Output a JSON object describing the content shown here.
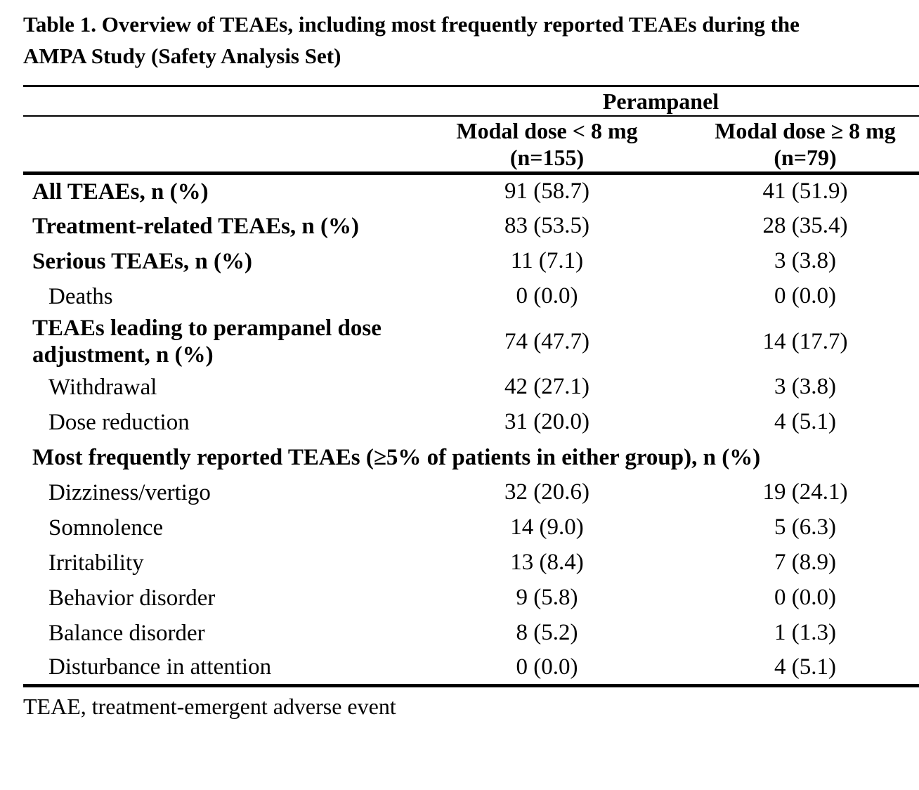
{
  "page": {
    "title_line1": "Table 1. Overview of TEAEs, including most frequently reported TEAEs during the",
    "title_line2": "AMPA Study (Safety Analysis Set)",
    "footnote": "TEAE, treatment-emergent adverse event"
  },
  "table": {
    "group_header": "Perampanel",
    "columns": [
      {
        "label_line1": "Modal dose < 8 mg",
        "label_line2": "(n=155)"
      },
      {
        "label_line1": "Modal dose ≥ 8 mg",
        "label_line2": "(n=79)"
      }
    ],
    "rows": [
      {
        "label": "All TEAEs, n (%)",
        "values": [
          "91 (58.7)",
          "41 (51.9)"
        ],
        "bold": true,
        "indent": false,
        "section": false,
        "tall": false
      },
      {
        "label": "Treatment-related TEAEs, n (%)",
        "values": [
          "83 (53.5)",
          "28 (35.4)"
        ],
        "bold": true,
        "indent": false,
        "section": false,
        "tall": false
      },
      {
        "label": "Serious TEAEs, n (%)",
        "values": [
          "11 (7.1)",
          "3 (3.8)"
        ],
        "bold": true,
        "indent": false,
        "section": false,
        "tall": false
      },
      {
        "label": "Deaths",
        "values": [
          "0 (0.0)",
          "0 (0.0)"
        ],
        "bold": false,
        "indent": true,
        "section": false,
        "tall": false
      },
      {
        "label": "TEAEs leading to perampanel dose adjustment, n (%)",
        "values": [
          "74 (47.7)",
          "14 (17.7)"
        ],
        "bold": true,
        "indent": false,
        "section": false,
        "tall": true
      },
      {
        "label": "Withdrawal",
        "values": [
          "42 (27.1)",
          "3 (3.8)"
        ],
        "bold": false,
        "indent": true,
        "section": false,
        "tall": false
      },
      {
        "label": "Dose reduction",
        "values": [
          "31 (20.0)",
          "4 (5.1)"
        ],
        "bold": false,
        "indent": true,
        "section": false,
        "tall": false
      },
      {
        "label": "Most frequently reported TEAEs (≥5% of patients in either group), n (%)",
        "values": [],
        "bold": true,
        "indent": false,
        "section": true,
        "tall": false
      },
      {
        "label": "Dizziness/vertigo",
        "values": [
          "32 (20.6)",
          "19 (24.1)"
        ],
        "bold": false,
        "indent": true,
        "section": false,
        "tall": false
      },
      {
        "label": "Somnolence",
        "values": [
          "14 (9.0)",
          "5 (6.3)"
        ],
        "bold": false,
        "indent": true,
        "section": false,
        "tall": false
      },
      {
        "label": "Irritability",
        "values": [
          "13 (8.4)",
          "7 (8.9)"
        ],
        "bold": false,
        "indent": true,
        "section": false,
        "tall": false
      },
      {
        "label": "Behavior disorder",
        "values": [
          "9 (5.8)",
          "0 (0.0)"
        ],
        "bold": false,
        "indent": true,
        "section": false,
        "tall": false
      },
      {
        "label": "Balance disorder",
        "values": [
          "8 (5.2)",
          "1 (1.3)"
        ],
        "bold": false,
        "indent": true,
        "section": false,
        "tall": false
      },
      {
        "label": "Disturbance in attention",
        "values": [
          "0 (0.0)",
          "4 (5.1)"
        ],
        "bold": false,
        "indent": true,
        "section": false,
        "tall": false
      }
    ]
  },
  "colors": {
    "background": "#ffffff",
    "text": "#000000",
    "rule": "#000000"
  }
}
